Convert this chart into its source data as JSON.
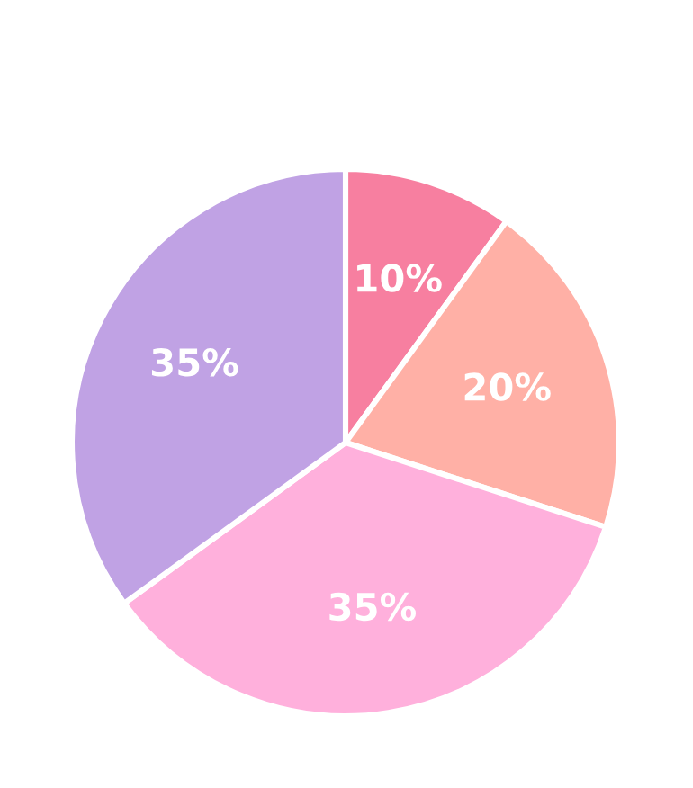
{
  "chart_data": {
    "type": "pie",
    "categories": [
      null,
      null,
      null,
      null
    ],
    "values": [
      10,
      20,
      35,
      35
    ],
    "value_labels": [
      "10%",
      "20%",
      "35%",
      "35%"
    ],
    "colors": [
      "#f77fa0",
      "#ffb0a6",
      "#ffb0dc",
      "#c0a2e4"
    ]
  }
}
